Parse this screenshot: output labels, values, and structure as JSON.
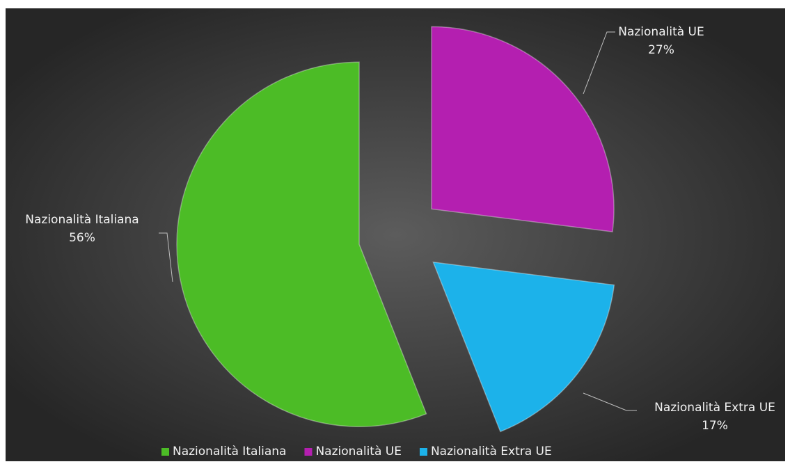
{
  "chart_data": {
    "type": "pie",
    "categories": [
      "Nazionalità Italiana",
      "Nazionalità UE",
      "Nazionalità Extra UE"
    ],
    "values": [
      56,
      27,
      17
    ],
    "value_labels": [
      "56%",
      "27%",
      "17%"
    ],
    "colors": [
      "#4cbc26",
      "#b41fb0",
      "#1cb2ea"
    ],
    "start_category": 1,
    "legend": "bottom"
  }
}
